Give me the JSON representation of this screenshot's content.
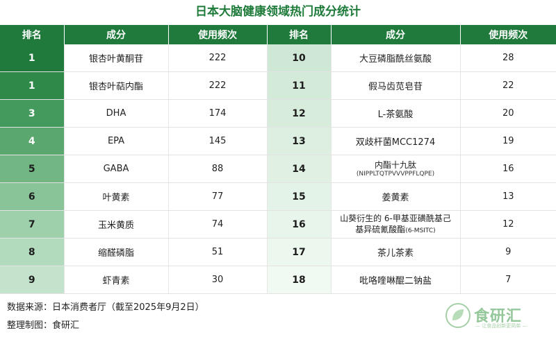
{
  "title": "日本大脑健康领域热门成分统计",
  "headers": [
    "排名",
    "成分",
    "使用频次",
    "排名",
    "成分",
    "使用频次"
  ],
  "left_rows": [
    {
      "rank": "1",
      "ingredient": "银杏叶黄酮苷",
      "count": "222"
    },
    {
      "rank": "1",
      "ingredient": "银杏叶萜内酯",
      "count": "222"
    },
    {
      "rank": "3",
      "ingredient": "DHA",
      "count": "174"
    },
    {
      "rank": "4",
      "ingredient": "EPA",
      "count": "145"
    },
    {
      "rank": "5",
      "ingredient": "GABA",
      "count": "88"
    },
    {
      "rank": "6",
      "ingredient": "叶黄素",
      "count": "77"
    },
    {
      "rank": "7",
      "ingredient": "玉米黄质",
      "count": "74"
    },
    {
      "rank": "8",
      "ingredient": "缩醛磷脂",
      "count": "51"
    },
    {
      "rank": "9",
      "ingredient": "虾青素",
      "count": "30"
    }
  ],
  "right_rows": [
    {
      "rank": "10",
      "ingredient": "大豆磷脂酰丝氨酸",
      "count": "28"
    },
    {
      "rank": "11",
      "ingredient": "假马齿苋皂苷",
      "count": "22"
    },
    {
      "rank": "12",
      "ingredient": "L-茶氨酸",
      "count": "20"
    },
    {
      "rank": "13",
      "ingredient": "双歧杆菌MCC1274",
      "count": "19"
    },
    {
      "rank": "14",
      "ingredient": "内酯十九肽",
      "sub": "(NIPPLTQTPVVVPPFLQPE)",
      "count": "16"
    },
    {
      "rank": "15",
      "ingredient": "姜黄素",
      "count": "13"
    },
    {
      "rank": "16",
      "ingredient": "山葵衍生的 6-甲基亚磺酰基己",
      "ingredient2": "基异硫氰酸酯",
      "sub2": "(6-MSITC)",
      "count": "12"
    },
    {
      "rank": "17",
      "ingredient": "茶儿茶素",
      "count": "9"
    },
    {
      "rank": "18",
      "ingredient": "吡咯喹啉醌二钠盐",
      "count": "7"
    }
  ],
  "footer": {
    "source": "数据来源：日本消费者厅（截至2025年9月2日）",
    "compiled": "整理制图：食研汇"
  },
  "logo": {
    "mark": "shi",
    "name": "食研汇",
    "slogan": "— 让食品创新更简单 —"
  },
  "colors": {
    "header_green": "#1f7a3b",
    "title_green": "#1e7b3a",
    "rank_gradient_left": [
      "#1f7a3b",
      "#2f8a4a",
      "#449a5c",
      "#5aa86f",
      "#71b683",
      "#88c497",
      "#9ed0ab",
      "#b2dabd",
      "#c4e3cd"
    ],
    "rank_gradient_right": [
      "#cfe8d6",
      "#d4ead9",
      "#d8ecdc",
      "#dcefe0",
      "#e0f1e4",
      "#e4f3e8",
      "#e8f5eb",
      "#ecf7ee",
      "#f0f9f2"
    ]
  }
}
